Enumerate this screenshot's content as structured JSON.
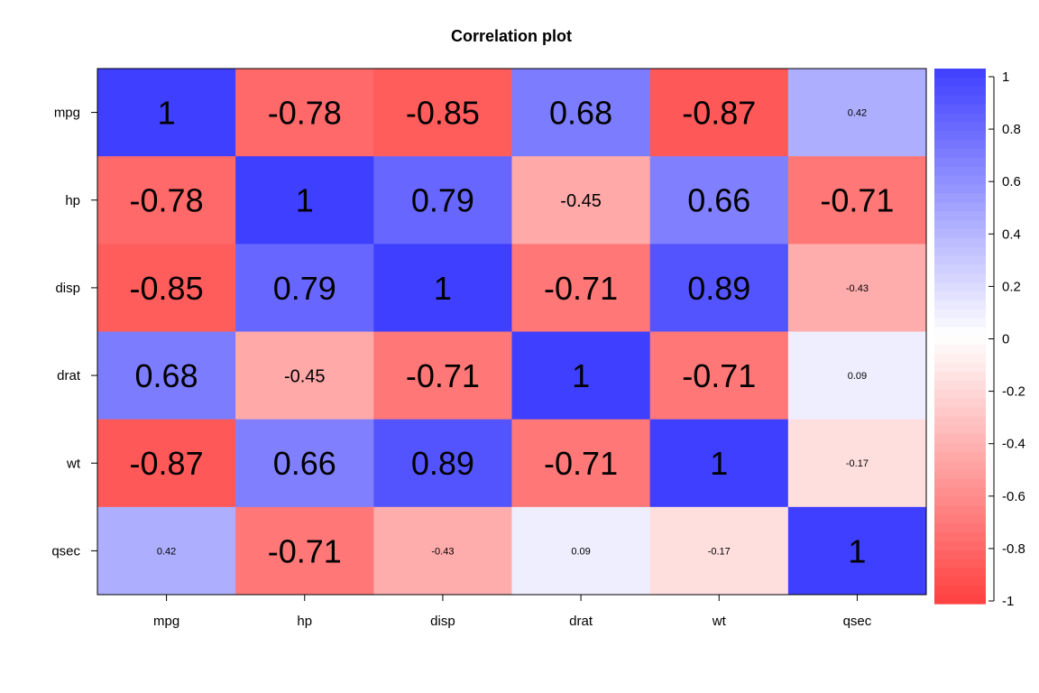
{
  "chart_data": {
    "type": "heatmap",
    "title": "Correlation plot",
    "variables": [
      "mpg",
      "hp",
      "disp",
      "drat",
      "wt",
      "qsec"
    ],
    "matrix": [
      [
        1,
        -0.78,
        -0.85,
        0.68,
        -0.87,
        0.42
      ],
      [
        -0.78,
        1,
        0.79,
        -0.45,
        0.66,
        -0.71
      ],
      [
        -0.85,
        0.79,
        1,
        -0.71,
        0.89,
        -0.43
      ],
      [
        0.68,
        -0.45,
        -0.71,
        1,
        -0.71,
        0.09
      ],
      [
        -0.87,
        0.66,
        0.89,
        -0.71,
        1,
        -0.17
      ],
      [
        0.42,
        -0.71,
        -0.43,
        0.09,
        -0.17,
        1
      ]
    ],
    "cell_labels": [
      [
        "1",
        "-0.78",
        "-0.85",
        "0.68",
        "-0.87",
        "0.42"
      ],
      [
        "-0.78",
        "1",
        "0.79",
        "-0.45",
        "0.66",
        "-0.71"
      ],
      [
        "-0.85",
        "0.79",
        "1",
        "-0.71",
        "0.89",
        "-0.43"
      ],
      [
        "0.68",
        "-0.45",
        "-0.71",
        "1",
        "-0.71",
        "0.09"
      ],
      [
        "-0.87",
        "0.66",
        "0.89",
        "-0.71",
        "1",
        "-0.17"
      ],
      [
        "0.42",
        "-0.71",
        "-0.43",
        "0.09",
        "-0.17",
        "1"
      ]
    ],
    "colorbar": {
      "range": [
        -1,
        1
      ],
      "ticks": [
        "1",
        "0.8",
        "0.6",
        "0.4",
        "0.2",
        "0",
        "-0.2",
        "-0.4",
        "-0.6",
        "-0.8",
        "-1"
      ],
      "tick_values": [
        1,
        0.8,
        0.6,
        0.4,
        0.2,
        0,
        -0.2,
        -0.4,
        -0.6,
        -0.8,
        -1
      ],
      "low_color": "#ff3f3f",
      "mid_color": "#ffffff",
      "high_color": "#3f3fff"
    },
    "legend": "right"
  }
}
